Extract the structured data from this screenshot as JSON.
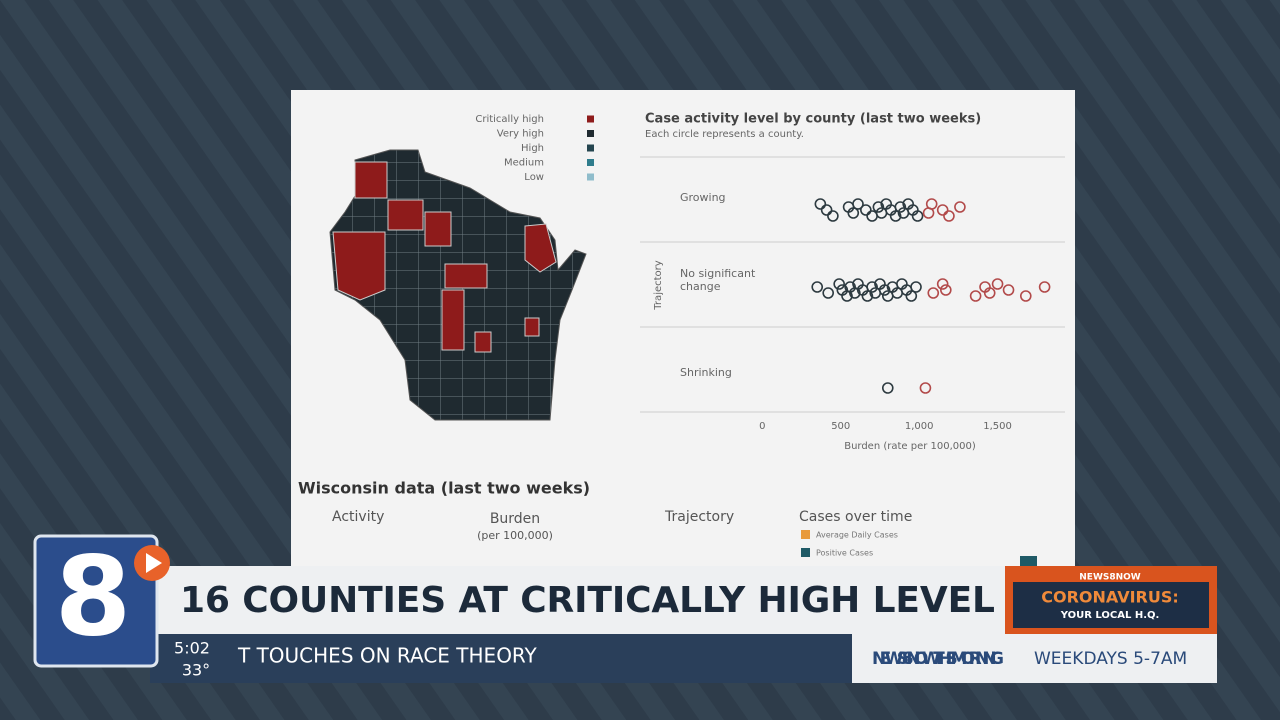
{
  "map_legend": [
    {
      "label": "Critically high",
      "color": "#8e1b1b"
    },
    {
      "label": "Very high",
      "color": "#1f2a30"
    },
    {
      "label": "High",
      "color": "#24454f"
    },
    {
      "label": "Medium",
      "color": "#2f7c8c"
    },
    {
      "label": "Low",
      "color": "#8fbccb"
    }
  ],
  "chart_data": {
    "type": "scatter",
    "title": "Case activity level by county (last two weeks)",
    "subtitle": "Each circle represents a county.",
    "y_label": "Trajectory",
    "x_label": "Burden (rate per 100,000)",
    "categories": [
      "Growing",
      "No significant\nchange",
      "Shrinking"
    ],
    "xlim": [
      -780,
      1930
    ],
    "xticks": [
      0,
      500,
      {
        "value": 1000,
        "label": "1,000"
      },
      {
        "value": 1500,
        "label": "1,500"
      }
    ],
    "series": [
      {
        "name": "Very high",
        "color": "#2d3a40",
        "x": [
          370,
          410,
          450,
          550,
          580,
          610,
          660,
          700,
          740,
          760,
          790,
          820,
          850,
          880,
          900,
          930,
          960,
          990,
          350,
          420,
          490,
          510,
          540,
          560,
          590,
          610,
          640,
          670,
          700,
          720,
          750,
          780,
          800,
          830,
          860,
          890,
          920,
          950,
          980,
          800
        ],
        "y": [
          "Growing",
          "Growing",
          "Growing",
          "Growing",
          "Growing",
          "Growing",
          "Growing",
          "Growing",
          "Growing",
          "Growing",
          "Growing",
          "Growing",
          "Growing",
          "Growing",
          "Growing",
          "Growing",
          "Growing",
          "Growing",
          "No significant\nchange",
          "No significant\nchange",
          "No significant\nchange",
          "No significant\nchange",
          "No significant\nchange",
          "No significant\nchange",
          "No significant\nchange",
          "No significant\nchange",
          "No significant\nchange",
          "No significant\nchange",
          "No significant\nchange",
          "No significant\nchange",
          "No significant\nchange",
          "No significant\nchange",
          "No significant\nchange",
          "No significant\nchange",
          "No significant\nchange",
          "No significant\nchange",
          "No significant\nchange",
          "No significant\nchange",
          "No significant\nchange",
          "Shrinking"
        ]
      },
      {
        "name": "Critically high",
        "color": "#b24a4a",
        "x": [
          1060,
          1080,
          1150,
          1190,
          1260,
          1090,
          1150,
          1170,
          1360,
          1420,
          1450,
          1500,
          1570,
          1680,
          1800,
          1040
        ],
        "y": [
          "Growing",
          "Growing",
          "Growing",
          "Growing",
          "Growing",
          "No significant\nchange",
          "No significant\nchange",
          "No significant\nchange",
          "No significant\nchange",
          "No significant\nchange",
          "No significant\nchange",
          "No significant\nchange",
          "No significant\nchange",
          "No significant\nchange",
          "No significant\nchange",
          "Shrinking"
        ]
      }
    ]
  },
  "table": {
    "title": "Wisconsin data (last two weeks)",
    "columns": [
      "Activity",
      "Burden",
      "Trajectory",
      "Cases over time"
    ],
    "burden_unit": "(per 100,000)",
    "legend": [
      "Average Daily Cases",
      "Positive Cases"
    ]
  },
  "broadcast": {
    "headline": "16 COUNTIES AT CRITICALLY HIGH LEVEL",
    "logo": "8",
    "promo_brand": "NEWS8NOW",
    "promo_title": "CORONAVIRUS:",
    "promo_sub": "YOUR LOCAL H.Q.",
    "time": "5:02",
    "temperature": "33°",
    "ticker": "T TOUCHES ON RACE THEORY",
    "show_name": "NEWS 8 NOW THIS MORNING",
    "show_time": "WEEKDAYS 5-7AM"
  }
}
